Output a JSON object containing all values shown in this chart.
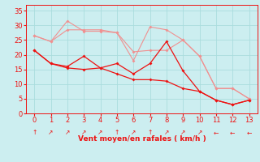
{
  "x": [
    0,
    1,
    2,
    3,
    4,
    5,
    6,
    7,
    8,
    9,
    10,
    11,
    12,
    13
  ],
  "line1_y": [
    26.5,
    24.5,
    28.5,
    28.5,
    28.5,
    27.5,
    21.0,
    21.5,
    21.5,
    25.0,
    19.5,
    8.5,
    8.5,
    5.0
  ],
  "line2_y": [
    26.5,
    24.5,
    31.5,
    28.0,
    28.0,
    27.5,
    18.0,
    29.5,
    28.5,
    25.0,
    19.5,
    8.5,
    8.5,
    5.0
  ],
  "line3_y": [
    21.5,
    17.0,
    16.0,
    19.5,
    15.5,
    17.0,
    13.5,
    17.0,
    24.5,
    14.5,
    7.5,
    4.5,
    3.0,
    4.5
  ],
  "line4_y": [
    21.5,
    17.0,
    15.5,
    15.0,
    15.5,
    13.5,
    11.5,
    11.5,
    11.0,
    8.5,
    7.5,
    4.5,
    3.0,
    4.5
  ],
  "line1_color": "#f09090",
  "line2_color": "#f09090",
  "line3_color": "#ee1111",
  "line4_color": "#ee1111",
  "bg_color": "#cceef0",
  "grid_color": "#aadddd",
  "xlabel": "Vent moyen/en rafales ( km/h )",
  "xlabel_color": "#ee1111",
  "tick_color": "#ee1111",
  "ylim": [
    0,
    37
  ],
  "yticks": [
    0,
    5,
    10,
    15,
    20,
    25,
    30,
    35
  ],
  "xticks": [
    0,
    1,
    2,
    3,
    4,
    5,
    6,
    7,
    8,
    9,
    10,
    11,
    12,
    13
  ],
  "arrow_labels": [
    "↑",
    "↗",
    "↗",
    "↗",
    "↗",
    "↑",
    "↗",
    "↑",
    "↗",
    "↗",
    "↗",
    "←",
    "←",
    "←"
  ]
}
